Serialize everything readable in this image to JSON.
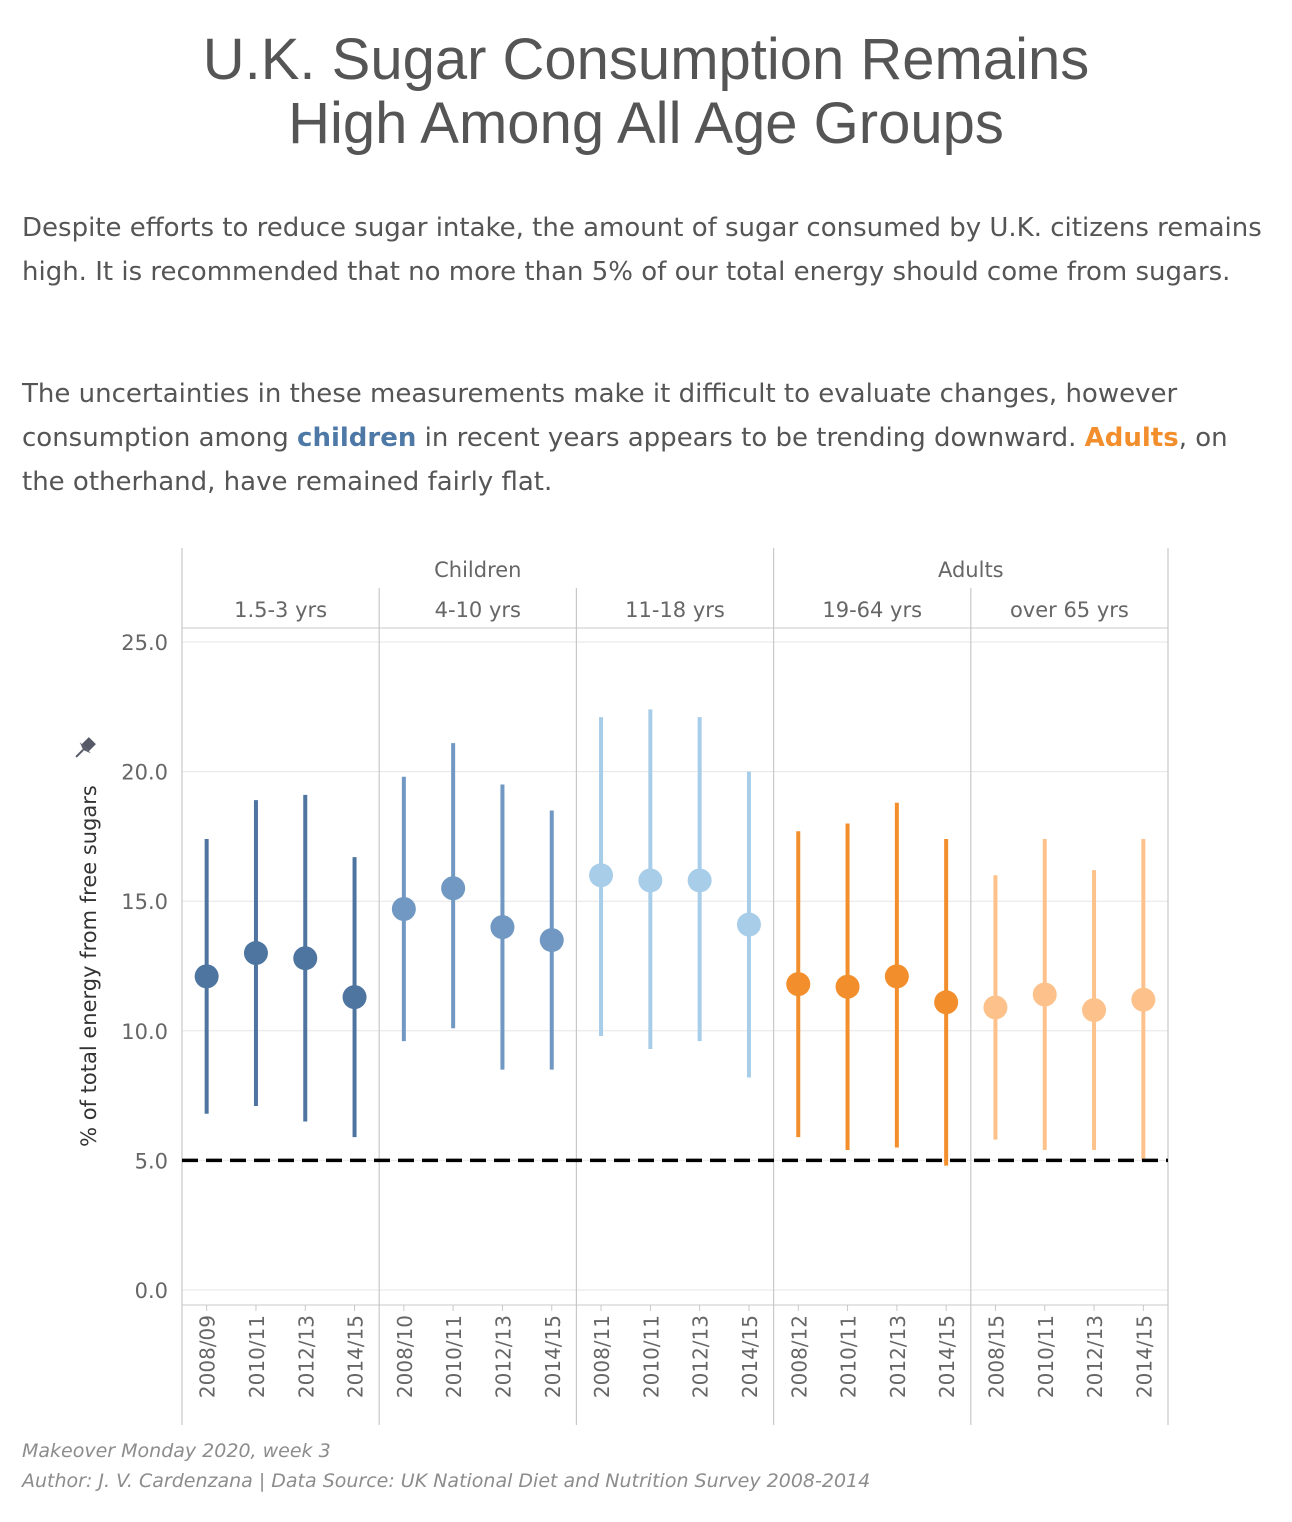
{
  "title": {
    "line1": "U.K. Sugar Consumption Remains",
    "line2": "High Among All Age Groups"
  },
  "paragraph1": "Despite efforts to reduce sugar intake, the amount of sugar consumed by U.K. citizens remains high. It is recommended that no more than 5% of our total energy should come from sugars.",
  "paragraph2": {
    "part1": "The uncertainties in these measurements make it difficult to evaluate changes, however consumption among ",
    "children": "children",
    "part2": " in recent years appears to be trending downward. ",
    "adults": "Adults",
    "part3": ", on the otherhand, have remained fairly flat."
  },
  "colors": {
    "children_1_5_3": "#4e74a0",
    "children_4_10": "#7098c2",
    "children_11_18": "#a7cde9",
    "adults_19_64": "#f28e2b",
    "adults_over_65": "#fdc28b",
    "reference_line": "#000000",
    "text": "#555555"
  },
  "chart_data": {
    "type": "scatter",
    "ylabel": "% of total energy from free sugars",
    "ylim": [
      0,
      25
    ],
    "yticks": [
      "0.0",
      "5.0",
      "10.0",
      "15.0",
      "20.0",
      "25.0"
    ],
    "reference_line": 5,
    "grid": true,
    "groups": [
      {
        "name": "Children",
        "panels": [
          {
            "label": "1.5-3 yrs",
            "color": "#4e74a0",
            "points": [
              {
                "x": "2008/09",
                "y": 12.1,
                "low": 6.8,
                "high": 17.4
              },
              {
                "x": "2010/11",
                "y": 13.0,
                "low": 7.1,
                "high": 18.9
              },
              {
                "x": "2012/13",
                "y": 12.8,
                "low": 6.5,
                "high": 19.1
              },
              {
                "x": "2014/15",
                "y": 11.3,
                "low": 5.9,
                "high": 16.7
              }
            ]
          },
          {
            "label": "4-10 yrs",
            "color": "#7098c2",
            "points": [
              {
                "x": "2008/10",
                "y": 14.7,
                "low": 9.6,
                "high": 19.8
              },
              {
                "x": "2010/11",
                "y": 15.5,
                "low": 10.1,
                "high": 21.1
              },
              {
                "x": "2012/13",
                "y": 14.0,
                "low": 8.5,
                "high": 19.5
              },
              {
                "x": "2014/15",
                "y": 13.5,
                "low": 8.5,
                "high": 18.5
              }
            ]
          },
          {
            "label": "11-18 yrs",
            "color": "#a7cde9",
            "points": [
              {
                "x": "2008/11",
                "y": 16.0,
                "low": 9.8,
                "high": 22.1
              },
              {
                "x": "2010/11",
                "y": 15.8,
                "low": 9.3,
                "high": 22.4
              },
              {
                "x": "2012/13",
                "y": 15.8,
                "low": 9.6,
                "high": 22.1
              },
              {
                "x": "2014/15",
                "y": 14.1,
                "low": 8.2,
                "high": 20.0
              }
            ]
          }
        ]
      },
      {
        "name": "Adults",
        "panels": [
          {
            "label": "19-64 yrs",
            "color": "#f28e2b",
            "points": [
              {
                "x": "2008/12",
                "y": 11.8,
                "low": 5.9,
                "high": 17.7
              },
              {
                "x": "2010/11",
                "y": 11.7,
                "low": 5.4,
                "high": 18.0
              },
              {
                "x": "2012/13",
                "y": 12.1,
                "low": 5.5,
                "high": 18.8
              },
              {
                "x": "2014/15",
                "y": 11.1,
                "low": 4.8,
                "high": 17.4
              }
            ]
          },
          {
            "label": "over 65 yrs",
            "color": "#fdc28b",
            "points": [
              {
                "x": "2008/15",
                "y": 10.9,
                "low": 5.8,
                "high": 16.0
              },
              {
                "x": "2010/11",
                "y": 11.4,
                "low": 5.4,
                "high": 17.4
              },
              {
                "x": "2012/13",
                "y": 10.8,
                "low": 5.4,
                "high": 16.2
              },
              {
                "x": "2014/15",
                "y": 11.2,
                "low": 5.0,
                "high": 17.4
              }
            ]
          }
        ]
      }
    ]
  },
  "footer": {
    "line1": "Makeover Monday 2020, week 3",
    "line2": "Author: J. V. Cardenzana | Data Source: UK National Diet and Nutrition Survey 2008-2014"
  }
}
